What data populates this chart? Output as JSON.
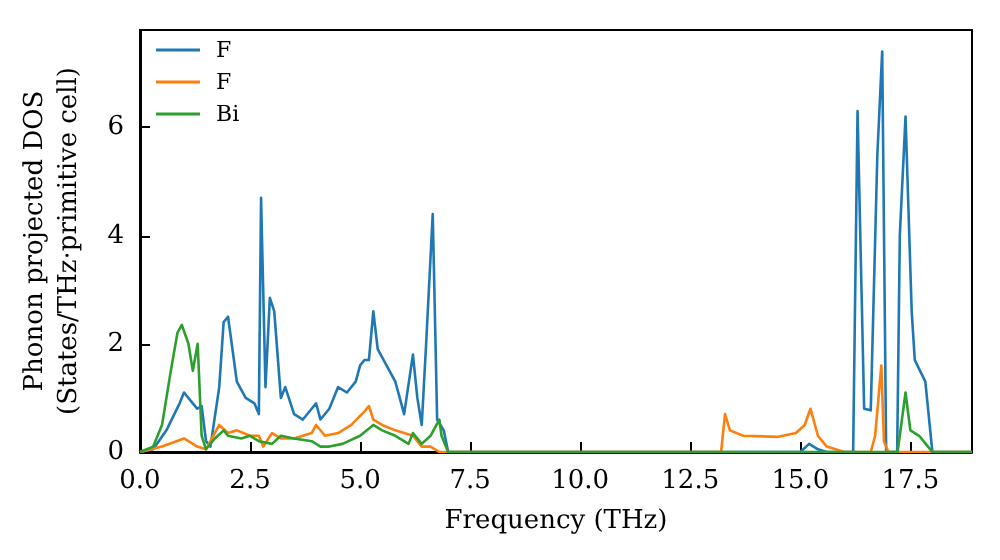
{
  "chart_data": {
    "type": "line",
    "xlabel": "Frequency (THz)",
    "ylabel": "Phonon projected DOS\n(States/THz·primitive cell)",
    "xlim": [
      0,
      18.9
    ],
    "ylim": [
      0,
      7.8
    ],
    "xticks": [
      {
        "value": 0,
        "label": "0.0"
      },
      {
        "value": 2.5,
        "label": "2.5"
      },
      {
        "value": 5,
        "label": "5.0"
      },
      {
        "value": 7.5,
        "label": "7.5"
      },
      {
        "value": 10,
        "label": "10.0"
      },
      {
        "value": 12.5,
        "label": "12.5"
      },
      {
        "value": 15,
        "label": "15.0"
      },
      {
        "value": 17.5,
        "label": "17.5"
      }
    ],
    "yticks": [
      0,
      2,
      4,
      6
    ],
    "grid": false,
    "legend": "top left",
    "marker": "none",
    "line_style": "solid",
    "series": [
      {
        "name": "F",
        "color": "#1f77b4",
        "x": [
          0,
          0.3,
          0.6,
          0.9,
          1.0,
          1.2,
          1.3,
          1.4,
          1.5,
          1.6,
          1.8,
          1.9,
          2.0,
          2.2,
          2.4,
          2.6,
          2.7,
          2.75,
          2.85,
          2.95,
          3.05,
          3.2,
          3.3,
          3.5,
          3.7,
          3.9,
          4.0,
          4.1,
          4.3,
          4.5,
          4.7,
          4.9,
          5.0,
          5.1,
          5.2,
          5.3,
          5.4,
          5.6,
          5.8,
          5.9,
          6.0,
          6.2,
          6.3,
          6.4,
          6.5,
          6.65,
          6.75,
          6.9,
          7.0,
          15.0,
          15.2,
          15.4,
          15.6,
          16.2,
          16.3,
          16.45,
          16.6,
          16.75,
          16.86,
          16.95,
          17.2,
          17.26,
          17.39,
          17.53,
          17.6,
          17.84,
          18.0,
          18.9
        ],
        "values": [
          0,
          0.05,
          0.4,
          0.9,
          1.1,
          0.9,
          0.8,
          0.85,
          0.2,
          0.1,
          1.2,
          2.4,
          2.5,
          1.3,
          1.0,
          0.9,
          0.7,
          4.7,
          1.2,
          2.85,
          2.6,
          1.0,
          1.2,
          0.7,
          0.6,
          0.8,
          0.9,
          0.6,
          0.8,
          1.2,
          1.1,
          1.3,
          1.6,
          1.7,
          1.7,
          2.6,
          1.9,
          1.6,
          1.3,
          1.0,
          0.7,
          1.8,
          1.0,
          0.5,
          2.0,
          4.4,
          0.6,
          0.4,
          0,
          0,
          0.15,
          0.05,
          0,
          0,
          6.3,
          0.8,
          0.77,
          5.5,
          7.4,
          0,
          0,
          4.0,
          6.2,
          2.6,
          1.7,
          1.3,
          0,
          0
        ]
      },
      {
        "name": "F",
        "color": "#ff7f0e",
        "x": [
          0,
          0.5,
          1.0,
          1.3,
          1.5,
          1.8,
          2.0,
          2.2,
          2.5,
          2.7,
          2.8,
          3.0,
          3.2,
          3.5,
          3.9,
          4.0,
          4.2,
          4.5,
          4.8,
          5.1,
          5.2,
          5.3,
          5.5,
          5.8,
          6.0,
          6.2,
          6.4,
          6.6,
          6.8,
          13.2,
          13.29,
          13.4,
          13.7,
          14.5,
          14.9,
          15.1,
          15.23,
          15.4,
          15.6,
          16.0,
          16.6,
          16.7,
          16.84,
          16.9,
          17.0,
          18.9
        ],
        "values": [
          0,
          0.1,
          0.25,
          0.1,
          0.05,
          0.5,
          0.35,
          0.4,
          0.3,
          0.3,
          0.1,
          0.35,
          0.25,
          0.25,
          0.35,
          0.5,
          0.3,
          0.35,
          0.5,
          0.75,
          0.85,
          0.6,
          0.5,
          0.4,
          0.35,
          0.3,
          0.1,
          0.1,
          0,
          0,
          0.7,
          0.4,
          0.3,
          0.28,
          0.35,
          0.5,
          0.8,
          0.3,
          0.1,
          0,
          0,
          0.3,
          1.6,
          0.2,
          0,
          0
        ]
      },
      {
        "name": "Bi",
        "color": "#2ca02c",
        "x": [
          0,
          0.3,
          0.5,
          0.7,
          0.85,
          0.95,
          1.1,
          1.2,
          1.31,
          1.4,
          1.5,
          1.7,
          1.9,
          2.0,
          2.3,
          2.5,
          2.7,
          3.0,
          3.2,
          3.5,
          3.9,
          4.1,
          4.3,
          4.6,
          5.0,
          5.3,
          5.5,
          5.8,
          6.1,
          6.2,
          6.4,
          6.6,
          6.8,
          6.85,
          7.0,
          17.21,
          17.39,
          17.5,
          17.7,
          17.9,
          18.0,
          18.9
        ],
        "values": [
          0,
          0.1,
          0.5,
          1.5,
          2.2,
          2.35,
          2.0,
          1.5,
          2.0,
          0.3,
          0.05,
          0.25,
          0.4,
          0.3,
          0.25,
          0.3,
          0.2,
          0.15,
          0.3,
          0.25,
          0.2,
          0.1,
          0.1,
          0.15,
          0.3,
          0.5,
          0.4,
          0.3,
          0.15,
          0.35,
          0.15,
          0.3,
          0.6,
          0.3,
          0,
          0,
          1.1,
          0.4,
          0.3,
          0.1,
          0,
          0
        ]
      }
    ]
  }
}
